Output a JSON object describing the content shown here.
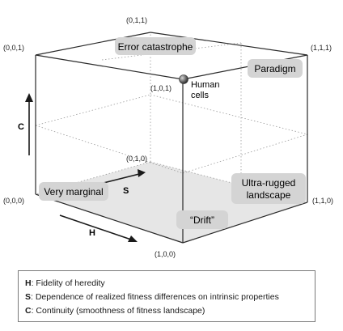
{
  "corners": {
    "c000": "(0,0,0)",
    "c010": "(0,1,0)",
    "c011": "(0,1,1)",
    "c001": "(0,0,1)",
    "c100": "(1,0,0)",
    "c110": "(1,1,0)",
    "c111": "(1,1,1)",
    "c101": "(1,0,1)"
  },
  "regions": {
    "error_catastrophe": "Error catastrophe",
    "paradigm": "Paradigm",
    "very_marginal": "Very marginal",
    "ultra_rugged_line1": "Ultra-rugged",
    "ultra_rugged_line2": "landscape",
    "drift": "“Drift”"
  },
  "point": {
    "label_line1": "Human",
    "label_line2": "cells"
  },
  "axes": {
    "h": "H",
    "s": "S",
    "c": "C"
  },
  "legend": [
    {
      "key": "H",
      "text": ": Fidelity of heredity"
    },
    {
      "key": "S",
      "text": ": Dependence of realized fitness differences on intrinsic properties"
    },
    {
      "key": "C",
      "text": ": Continuity (smoothness of fitness landscape)"
    }
  ]
}
